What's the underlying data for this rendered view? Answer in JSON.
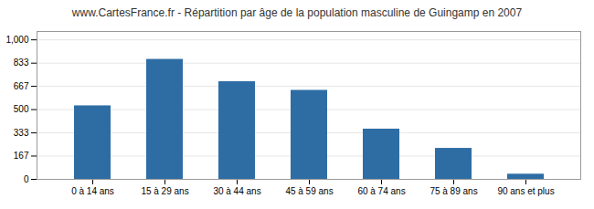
{
  "chart_data": {
    "type": "bar",
    "title": "www.CartesFrance.fr - Répartition par âge de la population masculine de Guingamp en 2007",
    "categories": [
      "0 à 14 ans",
      "15 à 29 ans",
      "30 à 44 ans",
      "45 à 59 ans",
      "60 à 74 ans",
      "75 à 89 ans",
      "90 ans et plus"
    ],
    "values": [
      527,
      860,
      700,
      638,
      360,
      222,
      37
    ],
    "color": "#2e6da4",
    "ylim": [
      0,
      1060
    ],
    "yticks": [
      0,
      167,
      333,
      500,
      667,
      833,
      1000
    ],
    "grid": true
  }
}
